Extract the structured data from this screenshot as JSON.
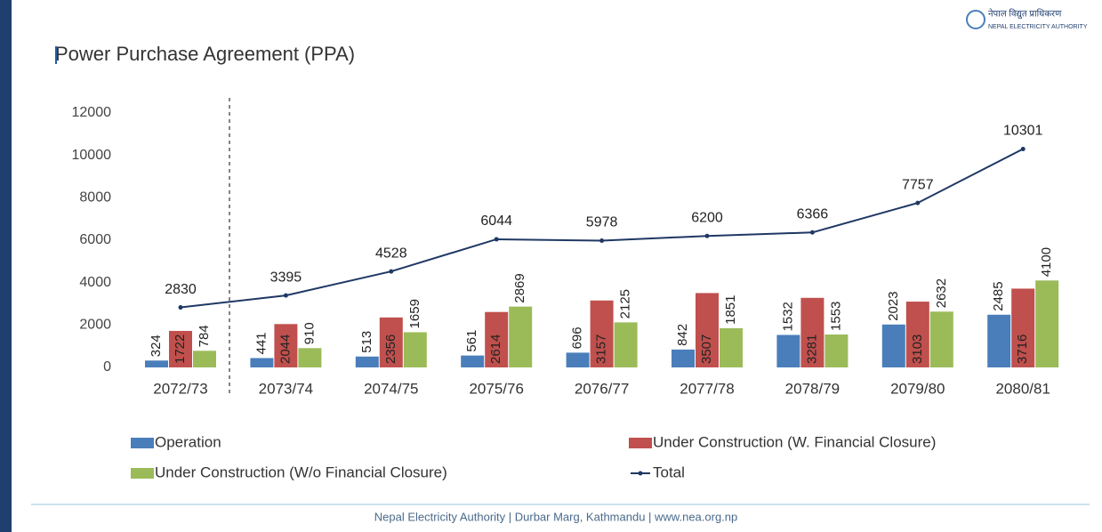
{
  "logo": {
    "text": "नेपाल विद्युत प्राधिकरण",
    "subtext": "NEPAL ELECTRICITY AUTHORITY"
  },
  "footer": "Nepal Electricity Authority | Durbar Marg, Kathmandu | www.nea.org.np",
  "chart_data": {
    "type": "bar",
    "title": "Power Purchase Agreement (PPA)",
    "categories": [
      "2072/73",
      "2073/74",
      "2074/75",
      "2075/76",
      "2076/77",
      "2077/78",
      "2078/79",
      "2079/80",
      "2080/81"
    ],
    "series": [
      {
        "name": "Operation",
        "color": "#4a7ebb",
        "type": "bar",
        "values": [
          324,
          441,
          513,
          561,
          696,
          842,
          1532,
          2023,
          2485
        ]
      },
      {
        "name": "Under Construction (W. Financial Closure)",
        "color": "#c0504d",
        "type": "bar",
        "values": [
          1722,
          2044,
          2356,
          2614,
          3157,
          3507,
          3281,
          3103,
          3716
        ]
      },
      {
        "name": "Under Construction (W/o Financial Closure)",
        "color": "#9bbb59",
        "type": "bar",
        "values": [
          784,
          910,
          1659,
          2869,
          2125,
          1851,
          1553,
          2632,
          4100
        ]
      },
      {
        "name": "Total",
        "color": "#1f3864",
        "type": "line",
        "values": [
          2830,
          3395,
          4528,
          6044,
          5978,
          6200,
          6366,
          7757,
          10301
        ]
      }
    ],
    "ylim": [
      0,
      12000
    ],
    "yticks": [
      0,
      2000,
      4000,
      6000,
      8000,
      10000,
      12000
    ],
    "grid": false,
    "legend": "bottom"
  }
}
